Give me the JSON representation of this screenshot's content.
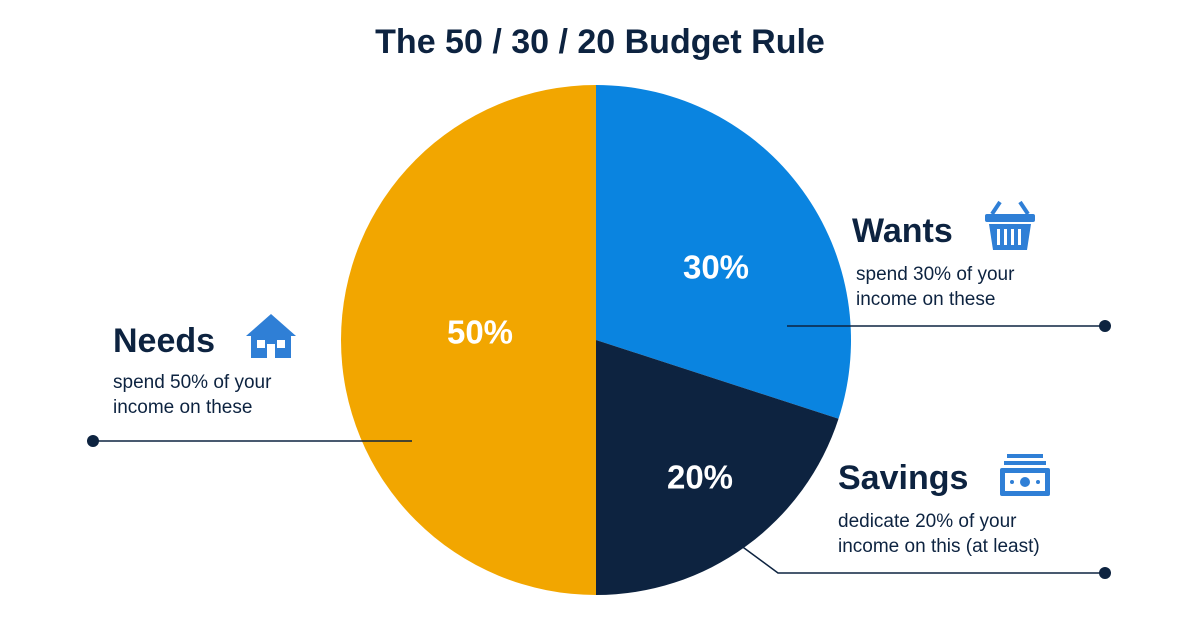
{
  "chart_data": {
    "type": "pie",
    "title": "The 50 / 30 / 20 Budget Rule",
    "categories": [
      "Wants",
      "Savings",
      "Needs"
    ],
    "values": [
      30,
      20,
      50
    ],
    "value_labels": [
      "30%",
      "20%",
      "50%"
    ],
    "colors": [
      "#0a84e0",
      "#0d2340",
      "#f2a600"
    ],
    "descriptions": [
      [
        "spend 30% of your",
        "income on these"
      ],
      [
        "dedicate 20% of your",
        "income on this (at least)"
      ],
      [
        "spend 50% of your",
        "income on these"
      ]
    ]
  }
}
